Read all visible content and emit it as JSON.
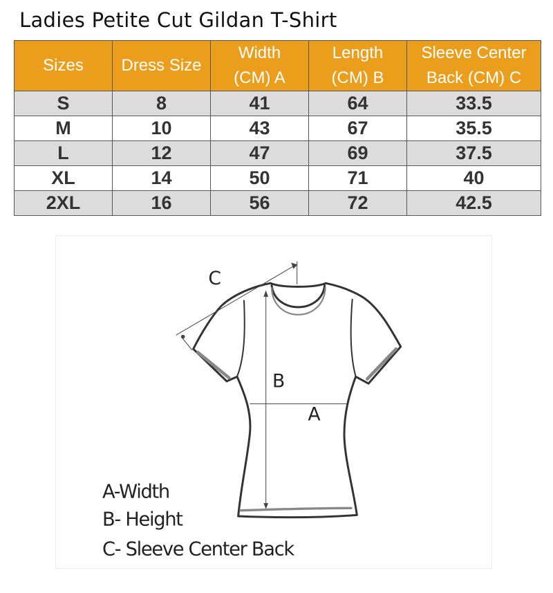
{
  "title": "Ladies Petite Cut Gildan T-Shirt",
  "table": {
    "headers": [
      "Sizes",
      "Dress Size",
      "Width\n(CM) A",
      "Length\n(CM) B",
      "Sleeve Center\nBack (CM) C"
    ],
    "header_lines": [
      [
        "Sizes"
      ],
      [
        "Dress Size"
      ],
      [
        "Width",
        "(CM) A"
      ],
      [
        "Length",
        "(CM) B"
      ],
      [
        "Sleeve Center",
        "Back (CM) C"
      ]
    ],
    "rows": [
      [
        "S",
        "8",
        "41",
        "64",
        "33.5"
      ],
      [
        "M",
        "10",
        "43",
        "67",
        "35.5"
      ],
      [
        "L",
        "12",
        "47",
        "69",
        "37.5"
      ],
      [
        "XL",
        "14",
        "50",
        "71",
        "40"
      ],
      [
        "2XL",
        "16",
        "56",
        "72",
        "42.5"
      ]
    ],
    "header_color": "#eb9d1c",
    "stripe_color": "#dcdcdc"
  },
  "diagram": {
    "labels": {
      "a": "A",
      "b": "B",
      "c": "C"
    },
    "legend": [
      "A-Width",
      "B- Height",
      "C- Sleeve Center Back"
    ]
  }
}
